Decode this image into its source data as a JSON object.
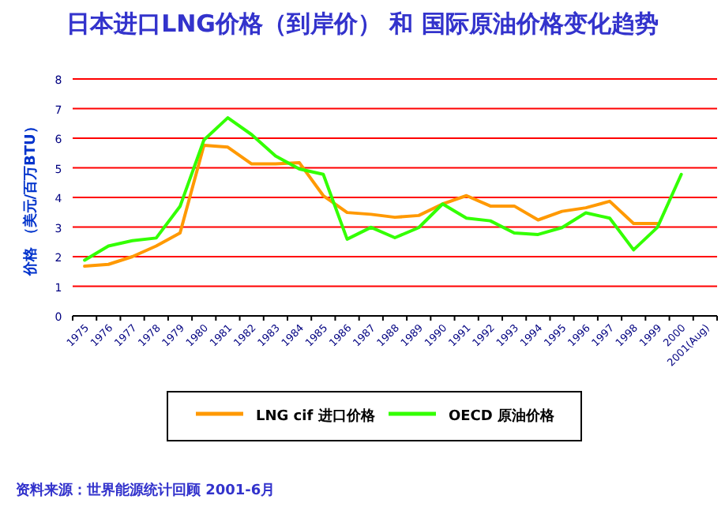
{
  "chart_data": {
    "type": "line",
    "title": "日本进口LNG价格（到岸价） 和 国际原油价格变化趋势",
    "ylabel": "价格 （美元/百万BTU）",
    "categories": [
      "1975",
      "1976",
      "1977",
      "1978",
      "1979",
      "1980",
      "1981",
      "1982",
      "1983",
      "1984",
      "1985",
      "1986",
      "1987",
      "1988",
      "1989",
      "1990",
      "1991",
      "1992",
      "1993",
      "1994",
      "1995",
      "1996",
      "1997",
      "1998",
      "1999",
      "2000",
      "2001(Aug)"
    ],
    "series": [
      {
        "name": "LNG cif 进口价格",
        "color": "#ff9900",
        "values": [
          1.68,
          1.74,
          2.0,
          2.36,
          2.8,
          5.76,
          5.7,
          5.13,
          5.13,
          5.17,
          4.06,
          3.49,
          3.43,
          3.33,
          3.39,
          3.78,
          4.06,
          3.71,
          3.71,
          3.24,
          3.53,
          3.65,
          3.87,
          3.12,
          3.12,
          null,
          null
        ]
      },
      {
        "name": "OECD 原油价格",
        "color": "#33ff00",
        "values": [
          1.88,
          2.36,
          2.54,
          2.63,
          3.7,
          5.94,
          6.69,
          6.12,
          5.4,
          4.96,
          4.78,
          2.59,
          2.99,
          2.64,
          2.98,
          3.78,
          3.3,
          3.21,
          2.8,
          2.75,
          2.98,
          3.48,
          3.3,
          2.23,
          2.99,
          4.78,
          null
        ]
      }
    ],
    "ylim": [
      0,
      8
    ],
    "yticks": [
      0,
      1,
      2,
      3,
      4,
      5,
      6,
      7,
      8
    ],
    "grid": "y",
    "legend": "bottom",
    "annotations": [
      "资料来源：世界能源统计回顾 2001-6月"
    ]
  }
}
